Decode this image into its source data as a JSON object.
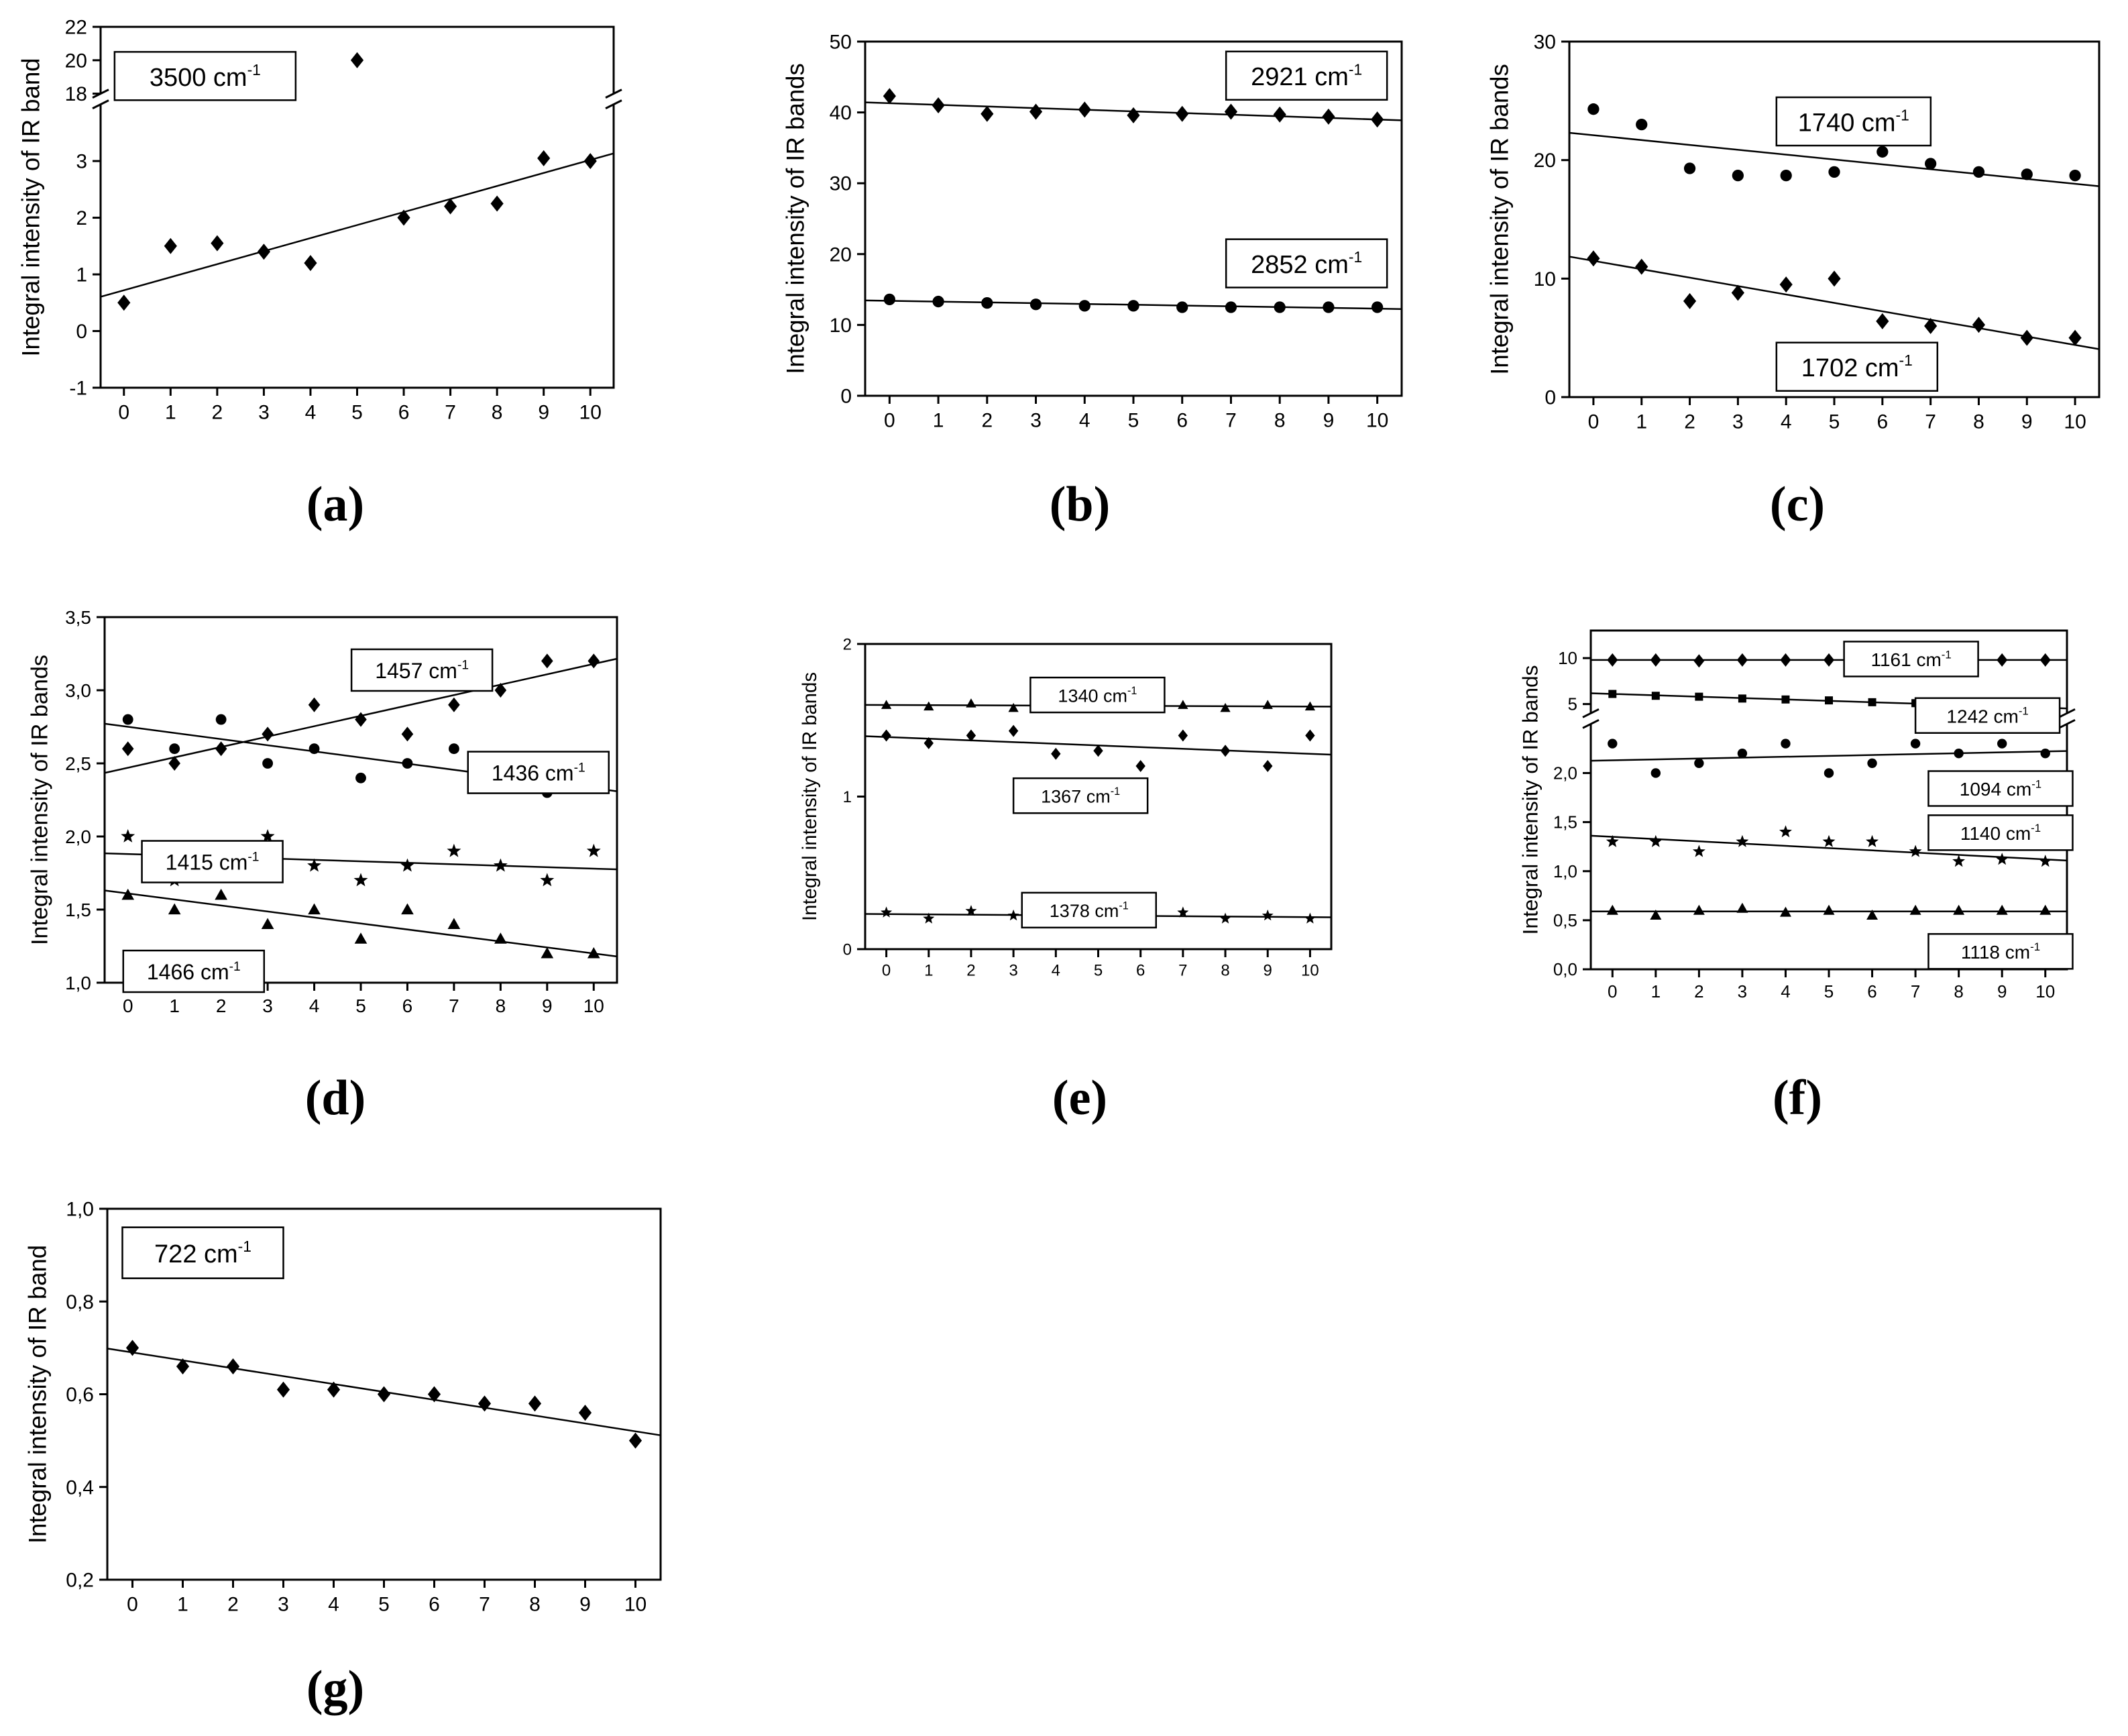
{
  "chart_data": [
    {
      "type": "scatter",
      "panel_label": "(a)",
      "title": "",
      "xlabel": "",
      "ylabel": "Integral intensity of IR band",
      "x_ticks": [
        "0",
        "1",
        "2",
        "3",
        "4",
        "5",
        "6",
        "7",
        "8",
        "9",
        "10"
      ],
      "ylim_lower": [
        -1,
        4
      ],
      "ylim_upper": [
        18,
        22
      ],
      "y_ticks_lower": [
        "-1",
        "0",
        "1",
        "2",
        "3"
      ],
      "y_ticks_upper": [
        "18",
        "20",
        "22"
      ],
      "axis_break": true,
      "grid": false,
      "series": [
        {
          "name": "3500 cm-1",
          "label_main": "3500 cm",
          "label_sup": "-1",
          "marker": "diamond",
          "x": [
            0,
            1,
            2,
            3,
            4,
            5,
            6,
            7,
            8,
            9,
            10
          ],
          "y": [
            0.5,
            1.5,
            1.55,
            1.4,
            1.2,
            20,
            2.0,
            2.2,
            2.25,
            3.05,
            3.0
          ],
          "fit": [
            0.72,
            3.02
          ]
        }
      ]
    },
    {
      "type": "scatter",
      "panel_label": "(b)",
      "title": "",
      "xlabel": "",
      "ylabel": "Integral intensity of IR bands",
      "x_ticks": [
        "0",
        "1",
        "2",
        "3",
        "4",
        "5",
        "6",
        "7",
        "8",
        "9",
        "10"
      ],
      "ylim": [
        0,
        50
      ],
      "y_ticks": [
        "0",
        "10",
        "20",
        "30",
        "40",
        "50"
      ],
      "grid": false,
      "series": [
        {
          "name": "2921 cm-1",
          "label_main": "2921 cm",
          "label_sup": "-1",
          "marker": "diamond",
          "x": [
            0,
            1,
            2,
            3,
            4,
            5,
            6,
            7,
            8,
            9,
            10
          ],
          "y": [
            42.3,
            41.0,
            39.8,
            40.1,
            40.4,
            39.6,
            39.8,
            40.1,
            39.7,
            39.4,
            39.0
          ],
          "fit": [
            41.3,
            39.0
          ]
        },
        {
          "name": "2852 cm-1",
          "label_main": "2852 cm",
          "label_sup": "-1",
          "marker": "circle",
          "x": [
            0,
            1,
            2,
            3,
            4,
            5,
            6,
            7,
            8,
            9,
            10
          ],
          "y": [
            13.6,
            13.3,
            13.1,
            12.9,
            12.7,
            12.7,
            12.5,
            12.5,
            12.5,
            12.5,
            12.5
          ],
          "fit": [
            13.4,
            12.3
          ]
        }
      ]
    },
    {
      "type": "scatter",
      "panel_label": "(c)",
      "title": "",
      "xlabel": "",
      "ylabel": "Integral intensity of IR bands",
      "x_ticks": [
        "0",
        "1",
        "2",
        "3",
        "4",
        "5",
        "6",
        "7",
        "8",
        "9",
        "10"
      ],
      "ylim": [
        0,
        30
      ],
      "y_ticks": [
        "0",
        "10",
        "20",
        "30"
      ],
      "grid": false,
      "series": [
        {
          "name": "1740 cm-1",
          "label_main": "1740 cm",
          "label_sup": "-1",
          "marker": "circle",
          "x": [
            0,
            1,
            2,
            3,
            4,
            5,
            6,
            7,
            8,
            9,
            10
          ],
          "y": [
            24.3,
            23.0,
            19.3,
            18.7,
            18.7,
            19.0,
            20.7,
            19.7,
            19.0,
            18.8,
            18.7
          ],
          "fit": [
            22.1,
            18.0
          ]
        },
        {
          "name": "1702 cm-1",
          "label_main": "1702 cm",
          "label_sup": "-1",
          "marker": "diamond",
          "x": [
            0,
            1,
            2,
            3,
            4,
            5,
            6,
            7,
            8,
            9,
            10
          ],
          "y": [
            11.7,
            11.0,
            8.1,
            8.8,
            9.5,
            10.0,
            6.4,
            6.0,
            6.1,
            5.0,
            5.0
          ],
          "fit": [
            11.5,
            4.4
          ]
        }
      ]
    },
    {
      "type": "scatter",
      "panel_label": "(d)",
      "title": "",
      "xlabel": "",
      "ylabel": "Integral intensity of IR bands",
      "x_ticks": [
        "0",
        "1",
        "2",
        "3",
        "4",
        "5",
        "6",
        "7",
        "8",
        "9",
        "10"
      ],
      "ylim": [
        1.0,
        3.5
      ],
      "y_ticks": [
        "1,0",
        "1,5",
        "2,0",
        "2,5",
        "3,0",
        "3,5"
      ],
      "grid": false,
      "series": [
        {
          "name": "1457 cm-1",
          "label_main": "1457 cm",
          "label_sup": "-1",
          "marker": "diamond",
          "x": [
            0,
            1,
            2,
            3,
            4,
            5,
            6,
            7,
            8,
            9,
            10
          ],
          "y": [
            2.6,
            2.5,
            2.6,
            2.7,
            2.9,
            2.8,
            2.7,
            2.9,
            3.0,
            3.2,
            3.2
          ],
          "fit": [
            2.47,
            3.18
          ]
        },
        {
          "name": "1436 cm-1",
          "label_main": "1436 cm",
          "label_sup": "-1",
          "marker": "circle",
          "x": [
            0,
            1,
            2,
            3,
            4,
            5,
            6,
            7,
            8,
            9,
            10
          ],
          "y": [
            2.8,
            2.6,
            2.8,
            2.5,
            2.6,
            2.4,
            2.5,
            2.6,
            2.4,
            2.3,
            2.4
          ],
          "fit": [
            2.75,
            2.33
          ]
        },
        {
          "name": "1415 cm-1",
          "label_main": "1415 cm",
          "label_sup": "-1",
          "marker": "star",
          "x": [
            0,
            1,
            2,
            3,
            4,
            5,
            6,
            7,
            8,
            9,
            10
          ],
          "y": [
            2.0,
            1.7,
            1.9,
            2.0,
            1.8,
            1.7,
            1.8,
            1.9,
            1.8,
            1.7,
            1.9
          ],
          "fit": [
            1.88,
            1.78
          ]
        },
        {
          "name": "1466 cm-1",
          "label_main": "1466 cm",
          "label_sup": "-1",
          "marker": "triangle",
          "x": [
            0,
            1,
            2,
            3,
            4,
            5,
            6,
            7,
            8,
            9,
            10
          ],
          "y": [
            1.6,
            1.5,
            1.6,
            1.4,
            1.5,
            1.3,
            1.5,
            1.4,
            1.3,
            1.2,
            1.2
          ],
          "fit": [
            1.61,
            1.2
          ]
        }
      ]
    },
    {
      "type": "scatter",
      "panel_label": "(e)",
      "title": "",
      "xlabel": "",
      "ylabel": "Integral intensity of IR bands",
      "x_ticks": [
        "0",
        "1",
        "2",
        "3",
        "4",
        "5",
        "6",
        "7",
        "8",
        "9",
        "10"
      ],
      "ylim": [
        0,
        2
      ],
      "y_ticks": [
        "0",
        "1",
        "2"
      ],
      "grid": false,
      "series": [
        {
          "name": "1340 cm-1",
          "label_main": "1340 cm",
          "label_sup": "-1",
          "marker": "triangle",
          "x": [
            0,
            1,
            2,
            3,
            4,
            5,
            6,
            7,
            8,
            9,
            10
          ],
          "y": [
            1.6,
            1.59,
            1.61,
            1.58,
            1.63,
            1.59,
            1.6,
            1.6,
            1.58,
            1.6,
            1.59
          ],
          "fit": [
            1.6,
            1.59
          ]
        },
        {
          "name": "1367 cm-1",
          "label_main": "1367 cm",
          "label_sup": "-1",
          "marker": "diamond",
          "x": [
            0,
            1,
            2,
            3,
            4,
            5,
            6,
            7,
            8,
            9,
            10
          ],
          "y": [
            1.4,
            1.35,
            1.4,
            1.43,
            1.28,
            1.3,
            1.2,
            1.4,
            1.3,
            1.2,
            1.4
          ],
          "fit": [
            1.39,
            1.28
          ]
        },
        {
          "name": "1378 cm-1",
          "label_main": "1378 cm",
          "label_sup": "-1",
          "marker": "star",
          "x": [
            0,
            1,
            2,
            3,
            4,
            5,
            6,
            7,
            8,
            9,
            10
          ],
          "y": [
            0.24,
            0.2,
            0.25,
            0.22,
            0.24,
            0.21,
            0.22,
            0.24,
            0.2,
            0.22,
            0.2
          ],
          "fit": [
            0.23,
            0.21
          ]
        }
      ]
    },
    {
      "type": "scatter",
      "panel_label": "(f)",
      "title": "",
      "xlabel": "",
      "ylabel": "Integral intensity of IR bands",
      "x_ticks": [
        "0",
        "1",
        "2",
        "3",
        "4",
        "5",
        "6",
        "7",
        "8",
        "9",
        "10"
      ],
      "ylim_lower": [
        0,
        2.5
      ],
      "ylim_upper": [
        4,
        13
      ],
      "y_ticks_lower": [
        "0,0",
        "0,5",
        "1,0",
        "1,5",
        "2,0"
      ],
      "y_ticks_upper": [
        "5",
        "10"
      ],
      "axis_break": true,
      "grid": false,
      "series": [
        {
          "name": "1161 cm-1",
          "label_main": "1161 cm",
          "label_sup": "-1",
          "marker": "diamond",
          "x": [
            0,
            1,
            2,
            3,
            4,
            5,
            6,
            7,
            8,
            9,
            10
          ],
          "y": [
            9.8,
            9.8,
            9.7,
            9.8,
            9.8,
            9.8,
            9.8,
            9.8,
            9.8,
            9.8,
            9.8
          ],
          "fit": [
            9.8,
            9.8
          ]
        },
        {
          "name": "1242 cm-1",
          "label_main": "1242 cm",
          "label_sup": "-1",
          "marker": "square",
          "x": [
            0,
            1,
            2,
            3,
            4,
            5,
            6,
            7,
            8,
            9,
            10
          ],
          "y": [
            6.1,
            5.9,
            5.8,
            5.6,
            5.5,
            5.4,
            5.2,
            5.1,
            4.9,
            4.8,
            4.6
          ],
          "fit": [
            6.1,
            4.6
          ]
        },
        {
          "name": "1094 cm-1",
          "label_main": "1094 cm",
          "label_sup": "-1",
          "marker": "circle",
          "x": [
            0,
            1,
            2,
            3,
            4,
            5,
            6,
            7,
            8,
            9,
            10
          ],
          "y": [
            2.3,
            2.0,
            2.1,
            2.2,
            2.3,
            2.0,
            2.1,
            2.3,
            2.2,
            2.3,
            2.2
          ],
          "fit": [
            2.13,
            2.22
          ]
        },
        {
          "name": "1140 cm-1",
          "label_main": "1140 cm",
          "label_sup": "-1",
          "marker": "star",
          "x": [
            0,
            1,
            2,
            3,
            4,
            5,
            6,
            7,
            8,
            9,
            10
          ],
          "y": [
            1.3,
            1.3,
            1.2,
            1.3,
            1.4,
            1.3,
            1.3,
            1.2,
            1.1,
            1.12,
            1.1
          ],
          "fit": [
            1.35,
            1.12
          ]
        },
        {
          "name": "1118 cm-1",
          "label_main": "1118 cm",
          "label_sup": "-1",
          "marker": "triangle",
          "x": [
            0,
            1,
            2,
            3,
            4,
            5,
            6,
            7,
            8,
            9,
            10
          ],
          "y": [
            0.6,
            0.55,
            0.6,
            0.62,
            0.58,
            0.6,
            0.55,
            0.6,
            0.6,
            0.6,
            0.6
          ],
          "fit": [
            0.59,
            0.59
          ]
        }
      ]
    },
    {
      "type": "scatter",
      "panel_label": "(g)",
      "title": "",
      "xlabel": "",
      "ylabel": "Integral intensity of IR band",
      "x_ticks": [
        "0",
        "1",
        "2",
        "3",
        "4",
        "5",
        "6",
        "7",
        "8",
        "9",
        "10"
      ],
      "ylim": [
        0.2,
        1.0
      ],
      "y_ticks": [
        "0,2",
        "0,4",
        "0,6",
        "0,8",
        "1,0"
      ],
      "grid": false,
      "series": [
        {
          "name": "722 cm-1",
          "label_main": "722 cm",
          "label_sup": "-1",
          "marker": "diamond",
          "x": [
            0,
            1,
            2,
            3,
            4,
            5,
            6,
            7,
            8,
            9,
            10
          ],
          "y": [
            0.7,
            0.66,
            0.66,
            0.61,
            0.61,
            0.6,
            0.6,
            0.58,
            0.58,
            0.56,
            0.5
          ],
          "fit": [
            0.69,
            0.52
          ]
        }
      ]
    }
  ]
}
